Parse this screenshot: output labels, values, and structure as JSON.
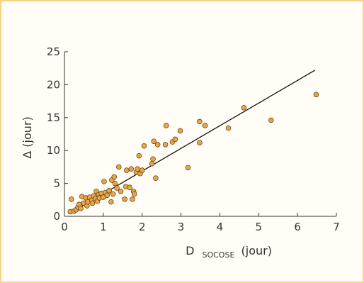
{
  "chart_data": {
    "type": "scatter",
    "title": "",
    "xlabel": {
      "main": "D",
      "sub": "SOCOSE",
      "unit": "(jour)"
    },
    "ylabel": "Δ (jour)",
    "xlim": [
      0,
      7
    ],
    "ylim": [
      0,
      25
    ],
    "x_ticks": [
      0,
      1,
      2,
      3,
      4,
      5,
      6,
      7
    ],
    "y_ticks": [
      0,
      5,
      10,
      15,
      20,
      25
    ],
    "grid": false,
    "legend": "none",
    "colors": {
      "point_fill": "#e8a54b",
      "point_stroke": "#5a3a10",
      "line": "#111111",
      "axis": "#333333"
    },
    "fit_line": {
      "x": [
        0.15,
        6.45
      ],
      "y": [
        0.5,
        22.2
      ]
    },
    "points": [
      [
        0.15,
        0.7
      ],
      [
        0.18,
        2.6
      ],
      [
        0.25,
        0.8
      ],
      [
        0.3,
        1.0
      ],
      [
        0.35,
        1.4
      ],
      [
        0.38,
        1.8
      ],
      [
        0.42,
        1.2
      ],
      [
        0.45,
        3.0
      ],
      [
        0.5,
        2.0
      ],
      [
        0.55,
        2.8
      ],
      [
        0.58,
        1.6
      ],
      [
        0.6,
        2.2
      ],
      [
        0.65,
        2.9
      ],
      [
        0.7,
        2.4
      ],
      [
        0.72,
        2.0
      ],
      [
        0.75,
        3.1
      ],
      [
        0.8,
        2.7
      ],
      [
        0.82,
        3.8
      ],
      [
        0.85,
        2.3
      ],
      [
        0.88,
        3.3
      ],
      [
        0.9,
        2.8
      ],
      [
        0.95,
        3.5
      ],
      [
        1.0,
        2.9
      ],
      [
        1.02,
        5.3
      ],
      [
        1.05,
        3.6
      ],
      [
        1.1,
        3.2
      ],
      [
        1.15,
        3.9
      ],
      [
        1.2,
        2.2
      ],
      [
        1.22,
        5.5
      ],
      [
        1.25,
        3.4
      ],
      [
        1.28,
        6.0
      ],
      [
        1.3,
        5.0
      ],
      [
        1.35,
        4.3
      ],
      [
        1.4,
        7.5
      ],
      [
        1.45,
        3.8
      ],
      [
        1.55,
        2.6
      ],
      [
        1.58,
        4.5
      ],
      [
        1.6,
        7.0
      ],
      [
        1.68,
        4.4
      ],
      [
        1.72,
        7.2
      ],
      [
        1.75,
        2.6
      ],
      [
        1.78,
        3.8
      ],
      [
        1.8,
        3.4
      ],
      [
        1.85,
        6.7
      ],
      [
        1.88,
        7.2
      ],
      [
        1.92,
        9.2
      ],
      [
        1.95,
        6.5
      ],
      [
        2.0,
        7.0
      ],
      [
        2.05,
        10.7
      ],
      [
        2.25,
        8.0
      ],
      [
        2.28,
        8.7
      ],
      [
        2.3,
        11.4
      ],
      [
        2.35,
        5.8
      ],
      [
        2.4,
        10.9
      ],
      [
        2.62,
        13.8
      ],
      [
        2.6,
        10.9
      ],
      [
        2.78,
        11.3
      ],
      [
        2.85,
        11.7
      ],
      [
        2.98,
        13.0
      ],
      [
        3.18,
        7.4
      ],
      [
        3.48,
        14.4
      ],
      [
        3.48,
        11.2
      ],
      [
        3.62,
        13.8
      ],
      [
        4.22,
        13.4
      ],
      [
        4.62,
        16.5
      ],
      [
        5.32,
        14.6
      ],
      [
        6.48,
        18.5
      ]
    ]
  }
}
